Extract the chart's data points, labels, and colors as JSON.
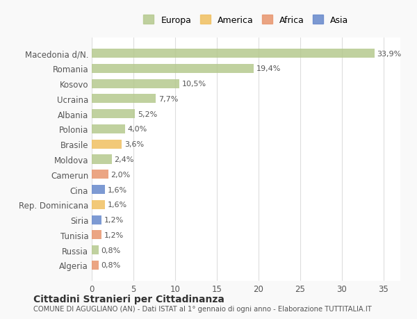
{
  "countries": [
    "Macedonia d/N.",
    "Romania",
    "Kosovo",
    "Ucraina",
    "Albania",
    "Polonia",
    "Brasile",
    "Moldova",
    "Camerun",
    "Cina",
    "Rep. Dominicana",
    "Siria",
    "Tunisia",
    "Russia",
    "Algeria"
  ],
  "values": [
    33.9,
    19.4,
    10.5,
    7.7,
    5.2,
    4.0,
    3.6,
    2.4,
    2.0,
    1.6,
    1.6,
    1.2,
    1.2,
    0.8,
    0.8
  ],
  "labels": [
    "33,9%",
    "19,4%",
    "10,5%",
    "7,7%",
    "5,2%",
    "4,0%",
    "3,6%",
    "2,4%",
    "2,0%",
    "1,6%",
    "1,6%",
    "1,2%",
    "1,2%",
    "0,8%",
    "0,8%"
  ],
  "continents": [
    "Europa",
    "Europa",
    "Europa",
    "Europa",
    "Europa",
    "Europa",
    "America",
    "Europa",
    "Africa",
    "Asia",
    "America",
    "Asia",
    "Africa",
    "Europa",
    "Africa"
  ],
  "colors": {
    "Europa": "#b5c98e",
    "America": "#f0c060",
    "Africa": "#e8956d",
    "Asia": "#6688cc"
  },
  "legend_order": [
    "Europa",
    "America",
    "Africa",
    "Asia"
  ],
  "title1": "Cittadini Stranieri per Cittadinanza",
  "title2": "COMUNE DI AGUGLIANO (AN) - Dati ISTAT al 1° gennaio di ogni anno - Elaborazione TUTTITALIA.IT",
  "xlim": [
    0,
    37
  ],
  "xticks": [
    0,
    5,
    10,
    15,
    20,
    25,
    30,
    35
  ],
  "bg_color": "#f9f9f9",
  "plot_bg_color": "#ffffff",
  "grid_color": "#dddddd"
}
